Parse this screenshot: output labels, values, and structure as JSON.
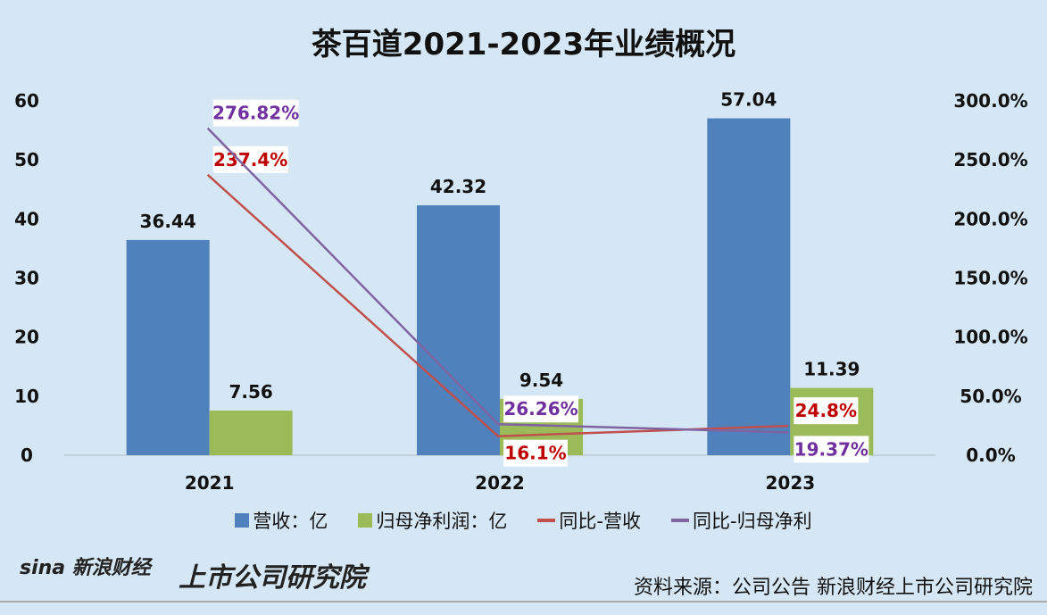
{
  "chart_data": {
    "type": "bar",
    "title": "茶百道2021-2023年业绩概况",
    "categories": [
      "2021",
      "2022",
      "2023"
    ],
    "ylim": [
      0,
      60
    ],
    "yticks": [
      "0",
      "10",
      "20",
      "30",
      "40",
      "50",
      "60"
    ],
    "y2lim": [
      0,
      300
    ],
    "y2ticks": [
      "0.0%",
      "50.0%",
      "100.0%",
      "150.0%",
      "200.0%",
      "250.0%",
      "300.0%"
    ],
    "series": [
      {
        "name": "营收：亿",
        "kind": "bar",
        "axis": "left",
        "color": "#4f81bd",
        "values": [
          36.44,
          42.32,
          57.04
        ],
        "labels": [
          "36.44",
          "42.32",
          "57.04"
        ]
      },
      {
        "name": "归母净利润：亿",
        "kind": "bar",
        "axis": "left",
        "color": "#9bbb59",
        "values": [
          7.56,
          9.54,
          11.39
        ],
        "labels": [
          "7.56",
          "9.54",
          "11.39"
        ]
      },
      {
        "name": "同比-营收",
        "kind": "line",
        "axis": "right",
        "color": "#c0504d",
        "labelColor": "#c00000",
        "values": [
          237.4,
          16.1,
          24.8
        ],
        "labels": [
          "237.4%",
          "16.1%",
          "24.8%"
        ],
        "labelPos": [
          "above",
          "below",
          "above"
        ]
      },
      {
        "name": "同比-归母净利",
        "kind": "line",
        "axis": "right",
        "color": "#8064a2",
        "labelColor": "#7030a0",
        "values": [
          276.82,
          26.26,
          19.37
        ],
        "labels": [
          "276.82%",
          "26.26%",
          "19.37%"
        ],
        "labelPos": [
          "above",
          "above",
          "below"
        ]
      }
    ],
    "legend": "bottom"
  },
  "footer": {
    "source": "资料来源：公司公告 新浪财经上市公司研究院",
    "logo1": "sina 新浪财经",
    "logo2": "上市公司研究院"
  }
}
